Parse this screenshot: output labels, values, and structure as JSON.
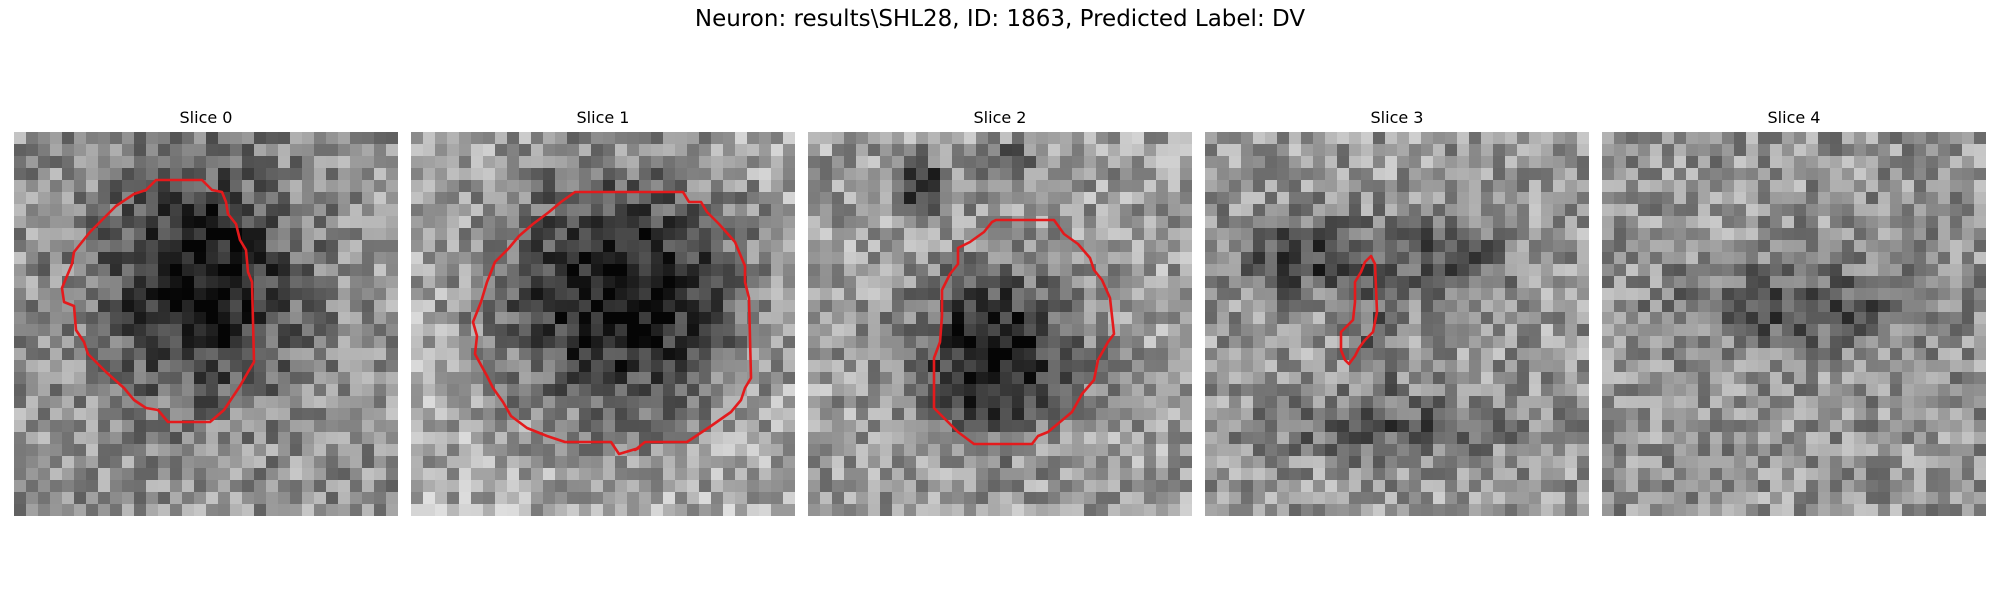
{
  "figure": {
    "title": "Neuron: results\\SHL28, ID: 1863, Predicted Label: DV"
  },
  "contour_color": "#e41a1c",
  "panels": [
    {
      "title": "Slice 0"
    },
    {
      "title": "Slice 1"
    },
    {
      "title": "Slice 2"
    },
    {
      "title": "Slice 3"
    },
    {
      "title": "Slice 4"
    }
  ]
}
